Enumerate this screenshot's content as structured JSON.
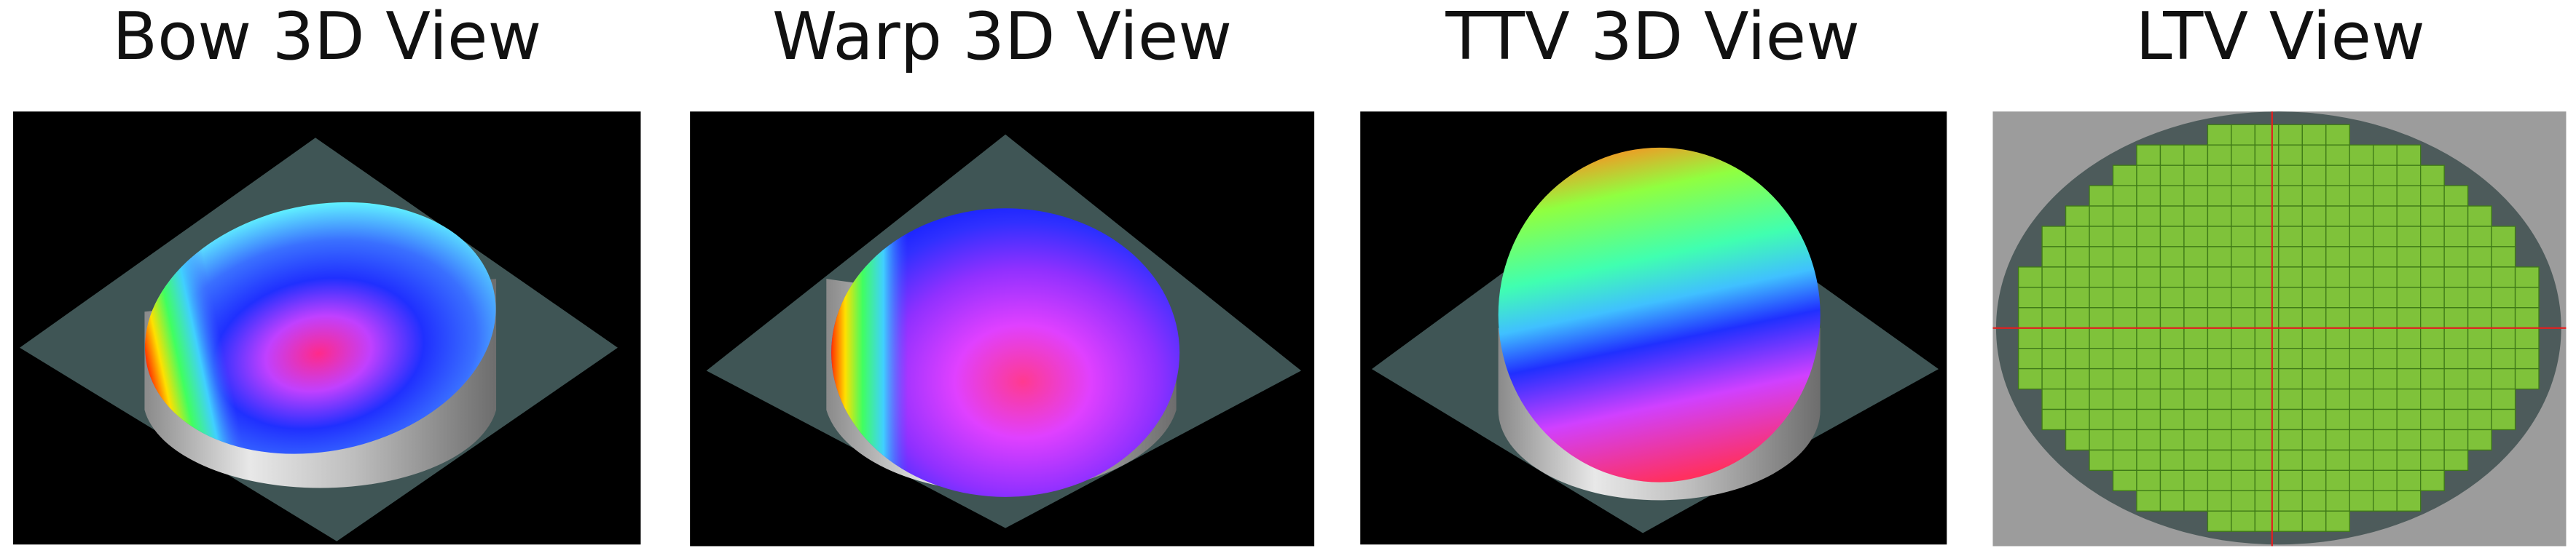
{
  "panels": [
    {
      "title": "Bow 3D View"
    },
    {
      "title": "Warp 3D View"
    },
    {
      "title": "TTV 3D View"
    },
    {
      "title": "LTV View"
    }
  ]
}
